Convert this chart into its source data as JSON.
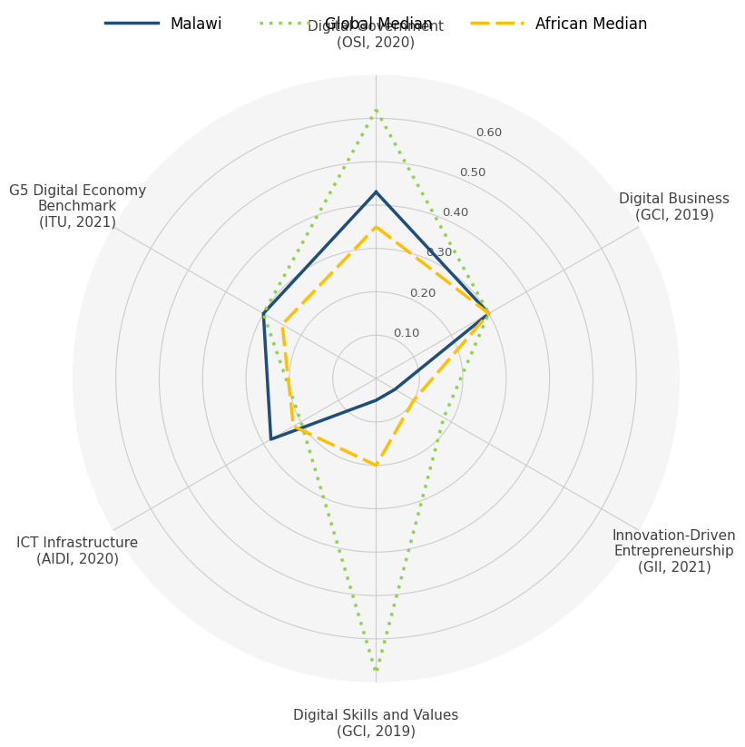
{
  "categories": [
    "Digital Government\n(OSI, 2020)",
    "Digital Business\n(GCI, 2019)",
    "Innovation-Driven\nEntrepreneurship\n(GII, 2021)",
    "Digital Skills and Values\n(GCI, 2019)",
    "ICT Infrastructure\n(AIDI, 2020)",
    "G5 Digital Economy\nBenchmark\n(ITU, 2021)"
  ],
  "malawi": [
    0.43,
    0.3,
    0.05,
    0.05,
    0.28,
    0.3
  ],
  "global_median": [
    0.62,
    0.3,
    0.18,
    0.68,
    0.2,
    0.3
  ],
  "african_median": [
    0.35,
    0.3,
    0.1,
    0.2,
    0.22,
    0.25
  ],
  "color_malawi": "#1f4e79",
  "color_global": "#92d050",
  "color_african": "#ffc000",
  "yticks": [
    0.1,
    0.2,
    0.3,
    0.4,
    0.5,
    0.6
  ],
  "ymax": 0.7,
  "label_fontsize": 11,
  "legend_fontsize": 12,
  "tick_fontsize": 9.5,
  "label_color": "#404040",
  "grid_color": "#cccccc"
}
